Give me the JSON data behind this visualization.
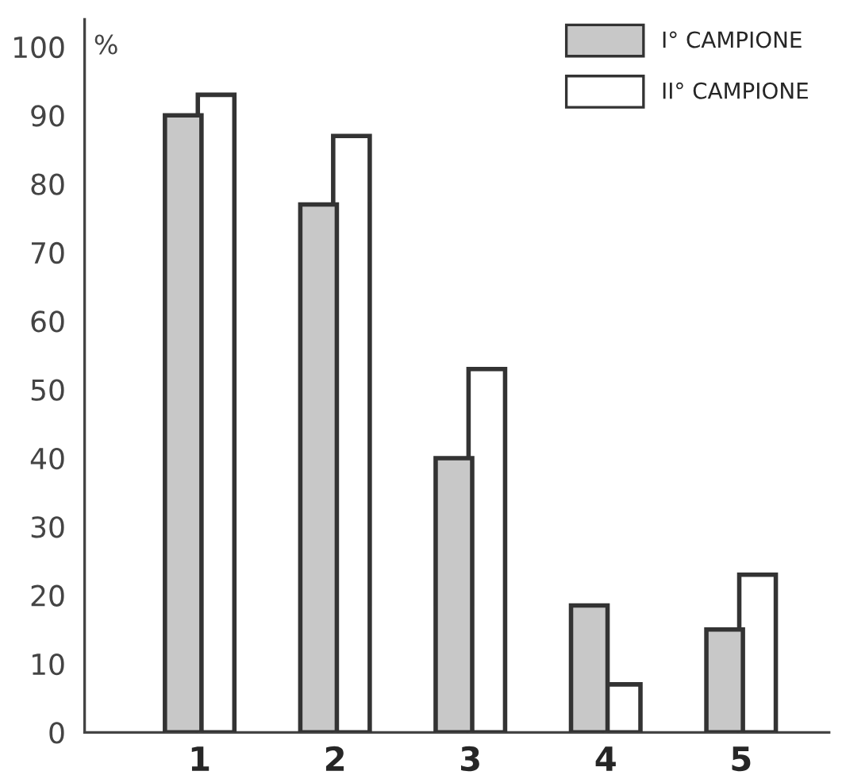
{
  "chart_data": {
    "type": "bar",
    "ylabel": "%",
    "categories": [
      "1",
      "2",
      "3",
      "4",
      "5"
    ],
    "series": [
      {
        "name": "I° CAMPIONE",
        "color": "#c8c8c8",
        "values": [
          90,
          77,
          40,
          18.5,
          15
        ]
      },
      {
        "name": "II° CAMPIONE",
        "color": "#ffffff",
        "values": [
          93,
          87,
          53,
          7,
          23
        ]
      }
    ],
    "ylim": [
      0,
      104
    ],
    "yticks": [
      0,
      10,
      20,
      30,
      40,
      50,
      60,
      70,
      80,
      90,
      100
    ],
    "grid": false,
    "legend": "top right"
  }
}
